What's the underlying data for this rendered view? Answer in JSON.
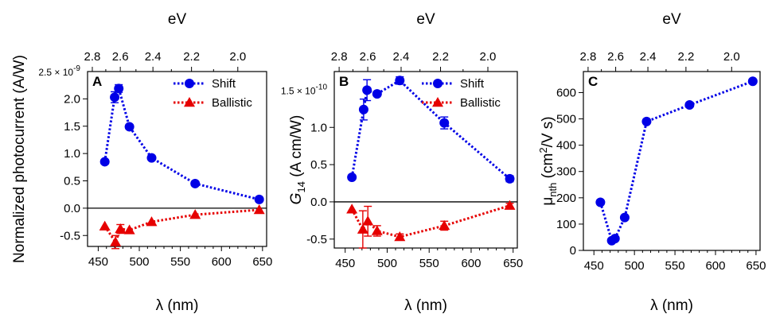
{
  "chart_data": [
    {
      "type": "line",
      "panel_label": "A",
      "xlabel": "λ (nm)",
      "ylabel": "Normalized photocurrent (A/W)",
      "top_xlabel": "eV",
      "y_exponent_label": "2.5 × 10",
      "y_exponent_power": "-9",
      "xlim": [
        437,
        655
      ],
      "ylim": [
        -0.7,
        2.5
      ],
      "x_ticks": [
        450,
        500,
        550,
        600,
        650
      ],
      "x_tick_labels": [
        "450",
        "500",
        "550",
        "600",
        "650"
      ],
      "y_ticks": [
        -0.5,
        0.0,
        0.5,
        1.0,
        1.5,
        2.0
      ],
      "y_tick_labels": [
        "-0.5",
        "0.0",
        "0.5",
        "1.0",
        "1.5",
        "2.0"
      ],
      "top_ticks_ev": [
        2.8,
        2.6,
        2.4,
        2.2,
        2.0
      ],
      "top_tick_labels": [
        "2.8",
        "2.6",
        "2.4",
        "2.2",
        "2.0"
      ],
      "zero_line": true,
      "legend_position": "top-right",
      "series": [
        {
          "name": "Shift",
          "color": "#0000e6",
          "marker": "circle",
          "x": [
            458,
            470,
            475,
            488,
            515,
            568,
            646
          ],
          "y": [
            0.85,
            2.03,
            2.19,
            1.49,
            0.92,
            0.45,
            0.16
          ],
          "err": [
            0,
            0.1,
            0.07,
            0,
            0,
            0,
            0
          ]
        },
        {
          "name": "Ballistic",
          "color": "#e60000",
          "marker": "triangle",
          "x": [
            458,
            471,
            477,
            488,
            515,
            568,
            646
          ],
          "y": [
            -0.33,
            -0.62,
            -0.38,
            -0.4,
            -0.25,
            -0.12,
            -0.03
          ],
          "err": [
            0,
            0.12,
            0.08,
            0,
            0,
            0,
            0
          ]
        }
      ]
    },
    {
      "type": "line",
      "panel_label": "B",
      "xlabel": "λ (nm)",
      "ylabel_main": "G",
      "ylabel_sub": "14",
      "ylabel_rest": " (A cm/W)",
      "top_xlabel": "eV",
      "y_exponent_label": "1.5 × 10",
      "y_exponent_power": "-10",
      "xlim": [
        437,
        655
      ],
      "ylim": [
        -0.62,
        1.75
      ],
      "x_ticks": [
        450,
        500,
        550,
        600,
        650
      ],
      "x_tick_labels": [
        "450",
        "500",
        "550",
        "600",
        "650"
      ],
      "y_ticks": [
        -0.5,
        0.0,
        0.5,
        1.0
      ],
      "y_tick_labels": [
        "-0.5",
        "0.0",
        "0.5",
        "1.0"
      ],
      "top_ticks_ev": [
        2.8,
        2.6,
        2.4,
        2.2,
        2.0
      ],
      "top_tick_labels": [
        "2.8",
        "2.6",
        "2.4",
        "2.2",
        "2.0"
      ],
      "zero_line": true,
      "legend_position": "top-right",
      "series": [
        {
          "name": "Shift",
          "color": "#0000e6",
          "marker": "circle",
          "x": [
            458,
            472,
            476,
            488,
            515,
            568,
            646
          ],
          "y": [
            0.33,
            1.24,
            1.5,
            1.45,
            1.63,
            1.06,
            0.31
          ],
          "err": [
            0,
            0.14,
            0.14,
            0,
            0.05,
            0.08,
            0.04
          ]
        },
        {
          "name": "Ballistic",
          "color": "#e60000",
          "marker": "triangle",
          "x": [
            458,
            471,
            477,
            488,
            515,
            568,
            646
          ],
          "y": [
            -0.1,
            -0.37,
            -0.26,
            -0.39,
            -0.47,
            -0.32,
            -0.05
          ],
          "err": [
            0,
            0.25,
            0.2,
            0.07,
            0.04,
            0.06,
            0.03
          ]
        }
      ]
    },
    {
      "type": "line",
      "panel_label": "C",
      "xlabel": "λ (nm)",
      "ylabel_main": "μ",
      "ylabel_sub": "nth",
      "ylabel_rest": " (cm",
      "ylabel_sup": "2",
      "ylabel_end": "/V s)",
      "top_xlabel": "eV",
      "xlim": [
        437,
        655
      ],
      "ylim": [
        0,
        680
      ],
      "x_ticks": [
        450,
        500,
        550,
        600,
        650
      ],
      "x_tick_labels": [
        "450",
        "500",
        "550",
        "600",
        "650"
      ],
      "y_ticks": [
        0,
        100,
        200,
        300,
        400,
        500,
        600
      ],
      "y_tick_labels": [
        "0",
        "100",
        "200",
        "300",
        "400",
        "500",
        "600"
      ],
      "top_ticks_ev": [
        2.8,
        2.6,
        2.4,
        2.2,
        2.0
      ],
      "top_tick_labels": [
        "2.8",
        "2.6",
        "2.4",
        "2.2",
        "2.0"
      ],
      "zero_line": false,
      "series": [
        {
          "color": "#0000e6",
          "marker": "circle",
          "x": [
            458,
            472,
            476,
            488,
            515,
            568,
            646
          ],
          "y": [
            183,
            37,
            45,
            125,
            490,
            553,
            643
          ],
          "err": [
            0,
            0,
            0,
            0,
            0,
            0,
            0
          ]
        }
      ]
    }
  ]
}
